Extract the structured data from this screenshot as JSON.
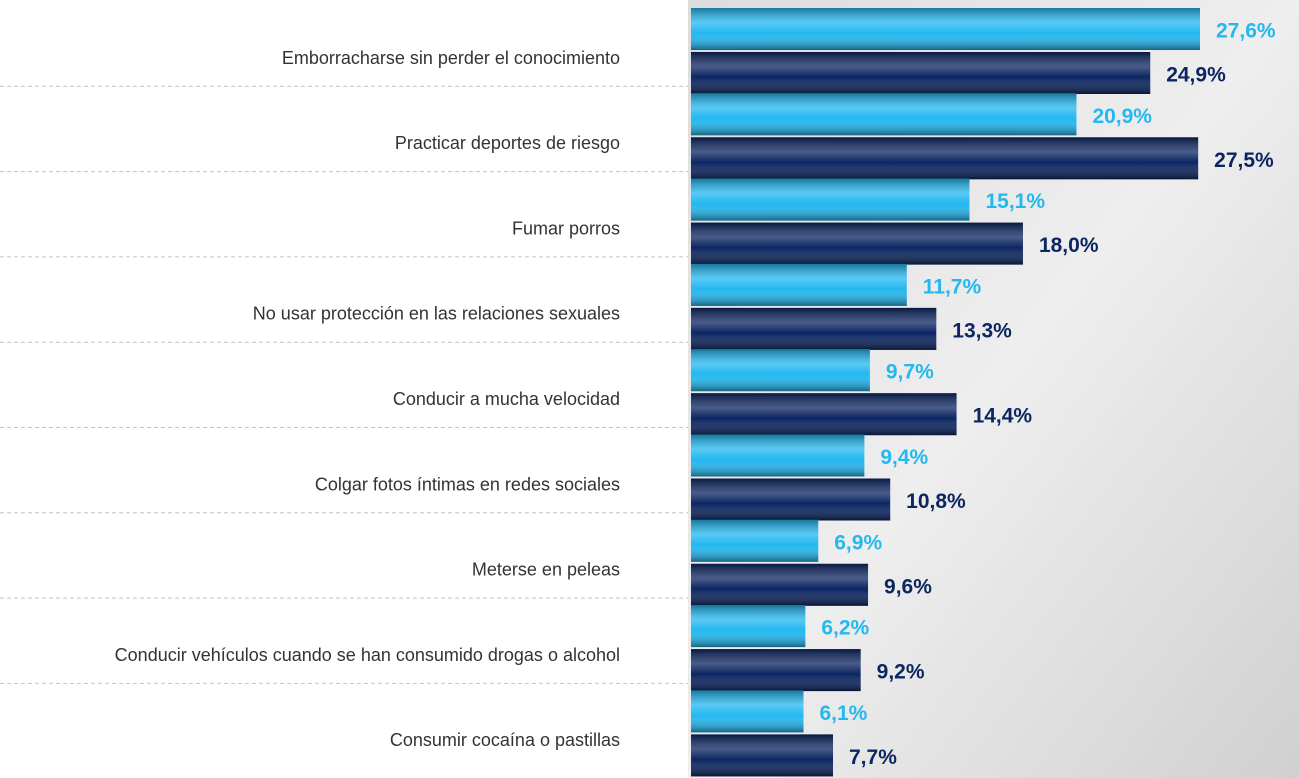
{
  "chart_data": {
    "type": "bar",
    "orientation": "horizontal",
    "categories": [
      "Emborracharse sin perder el conocimiento",
      "Practicar deportes de riesgo",
      "Fumar porros",
      "No usar protección en las relaciones sexuales",
      "Conducir a mucha velocidad",
      "Colgar fotos íntimas en redes sociales",
      "Meterse en peleas",
      "Conducir vehículos cuando se han consumido drogas o alcohol",
      "Consumir cocaína o pastillas"
    ],
    "series": [
      {
        "color": "#22b8f0",
        "values": [
          27.6,
          20.9,
          15.1,
          11.7,
          9.7,
          9.4,
          6.9,
          6.2,
          6.1
        ],
        "value_labels": [
          "27,6%",
          "20,9%",
          "15,1%",
          "11,7%",
          "9,7%",
          "9,4%",
          "6,9%",
          "6,2%",
          "6,1%"
        ]
      },
      {
        "color": "#0c2662",
        "values": [
          24.9,
          27.5,
          18.0,
          13.3,
          14.4,
          10.8,
          9.6,
          9.2,
          7.7
        ],
        "value_labels": [
          "24,9%",
          "27,5%",
          "18,0%",
          "13,3%",
          "14,4%",
          "10,8%",
          "9,6%",
          "9,2%",
          "7,7%"
        ]
      }
    ]
  }
}
